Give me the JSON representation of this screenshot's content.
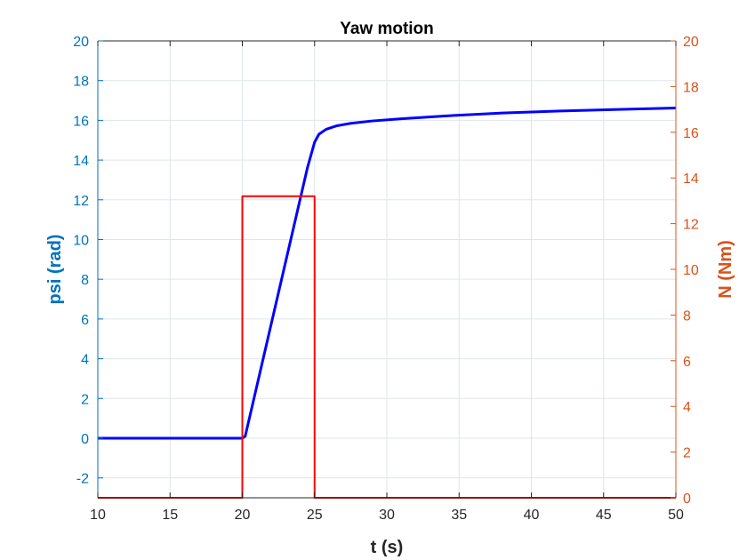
{
  "chart_data": {
    "type": "line",
    "title": "Yaw motion",
    "xlabel": "t (s)",
    "ylabel_left": "psi (rad)",
    "ylabel_right": "N (Nm)",
    "xlim": [
      10,
      50
    ],
    "ylim_left": [
      -3,
      20
    ],
    "ylim_right": [
      0,
      20
    ],
    "xticks": [
      "10",
      "15",
      "20",
      "25",
      "30",
      "35",
      "40",
      "45",
      "50"
    ],
    "yticks_left": [
      "-2",
      "0",
      "2",
      "4",
      "6",
      "8",
      "10",
      "12",
      "14",
      "16",
      "18",
      "20"
    ],
    "yticks_right": [
      "0",
      "2",
      "4",
      "6",
      "8",
      "10",
      "12",
      "14",
      "16",
      "18",
      "20"
    ],
    "grid": true,
    "colors": {
      "left_axis": "#0072BD",
      "right_axis": "#D95319",
      "psi_line": "#0000ff",
      "n_line": "#ff0000",
      "grid": "#dfe6ea"
    },
    "series": [
      {
        "axis": "left",
        "x": [
          10,
          20,
          20.2,
          24.5,
          25.0,
          25.3,
          25.8,
          26.5,
          27.5,
          29,
          31,
          34,
          38,
          42,
          46,
          50
        ],
        "y": [
          0,
          0,
          0.1,
          13.6,
          14.9,
          15.3,
          15.55,
          15.72,
          15.85,
          15.97,
          16.08,
          16.22,
          16.37,
          16.47,
          16.55,
          16.62
        ]
      },
      {
        "axis": "right",
        "x": [
          10,
          20,
          20,
          25,
          25,
          50
        ],
        "y": [
          0,
          0,
          13.2,
          13.2,
          0,
          0
        ]
      }
    ]
  }
}
